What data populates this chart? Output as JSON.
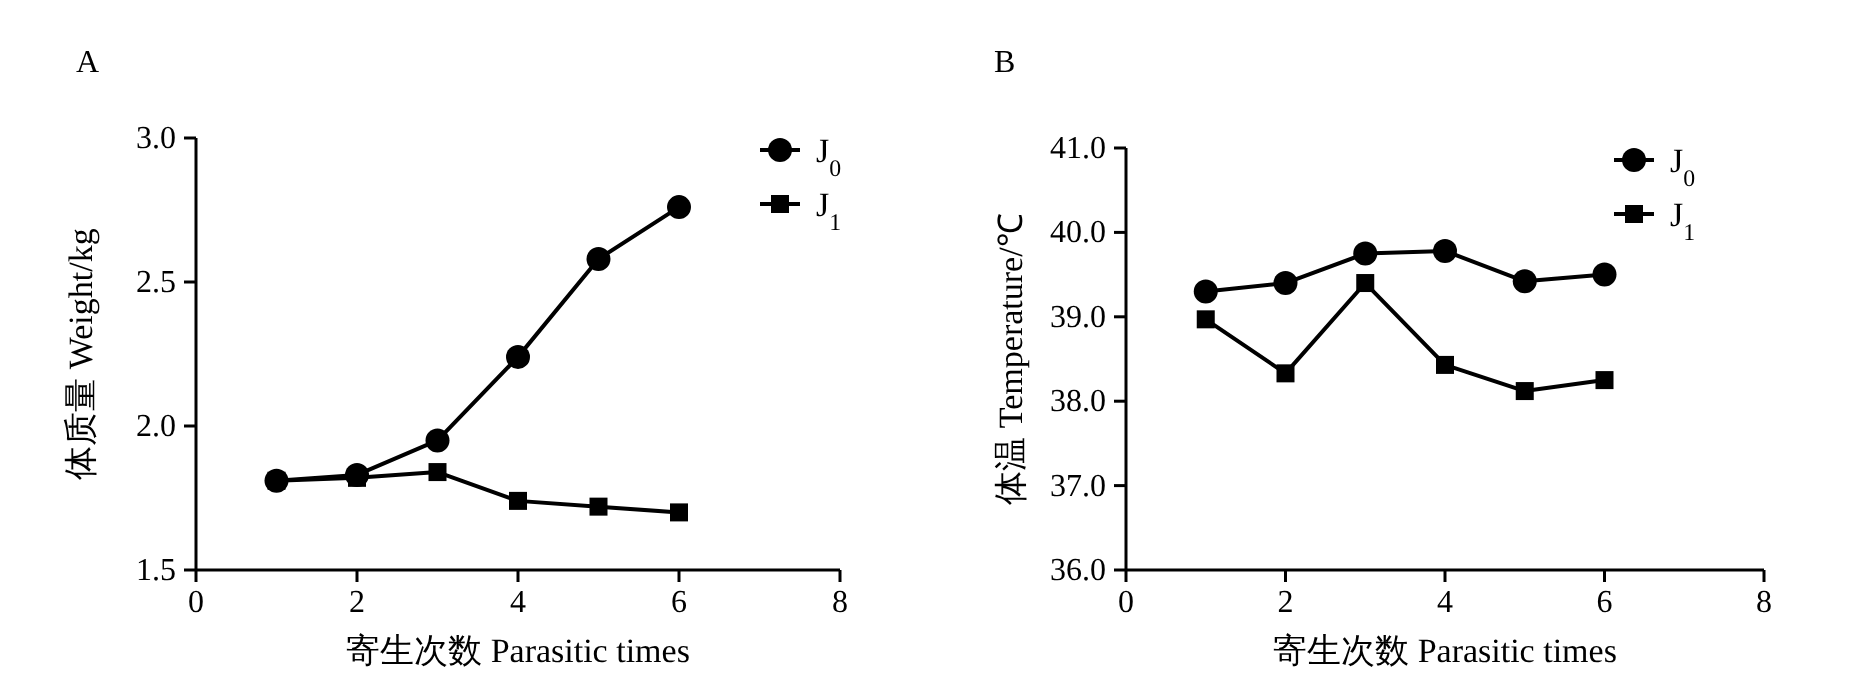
{
  "chart_data": [
    {
      "type": "line",
      "title": "A",
      "xlabel": "寄生次数 Parasitic times",
      "ylabel": "体质量 Weight/kg",
      "x": [
        1,
        2,
        3,
        4,
        5,
        6
      ],
      "xlim": [
        0,
        8
      ],
      "xticks": [
        0,
        2,
        4,
        6,
        8
      ],
      "ylim": [
        1.5,
        3.0
      ],
      "yticks": [
        {
          "value": 1.5,
          "label": "1.5"
        },
        {
          "value": 2,
          "label": "2.0"
        },
        {
          "value": 2.5,
          "label": "2.5"
        },
        {
          "value": 3,
          "label": "3.0"
        }
      ],
      "legend": "top right",
      "grid": false,
      "series": [
        {
          "name": "J$_{0}$",
          "color": "#000000",
          "marker": "circle",
          "values": [
            1.81,
            1.83,
            1.95,
            2.24,
            2.58,
            2.76
          ]
        },
        {
          "name": "J$_{1}$",
          "color": "#000000",
          "marker": "square",
          "values": [
            1.81,
            1.82,
            1.84,
            1.74,
            1.72,
            1.7
          ]
        }
      ]
    },
    {
      "type": "line",
      "title": "B",
      "xlabel": "寄生次数 Parasitic times",
      "ylabel": "体温 Temperature/℃",
      "x": [
        1,
        2,
        3,
        4,
        5,
        6
      ],
      "xlim": [
        0,
        8
      ],
      "xticks": [
        0,
        2,
        4,
        6,
        8
      ],
      "ylim": [
        36,
        41
      ],
      "yticks": [
        {
          "value": 36,
          "label": "36.0"
        },
        {
          "value": 37,
          "label": "37.0"
        },
        {
          "value": 38,
          "label": "38.0"
        },
        {
          "value": 39,
          "label": "39.0"
        },
        {
          "value": 40,
          "label": "40.0"
        },
        {
          "value": 41,
          "label": "41.0"
        }
      ],
      "legend": "top right",
      "grid": false,
      "series": [
        {
          "name": "J$_{0}$",
          "color": "#000000",
          "marker": "circle",
          "values": [
            39.3,
            39.4,
            39.75,
            39.78,
            39.42,
            39.5
          ]
        },
        {
          "name": "J$_{1}$",
          "color": "#000000",
          "marker": "square",
          "values": [
            38.97,
            38.33,
            39.4,
            38.43,
            38.12,
            38.25
          ]
        }
      ]
    }
  ]
}
